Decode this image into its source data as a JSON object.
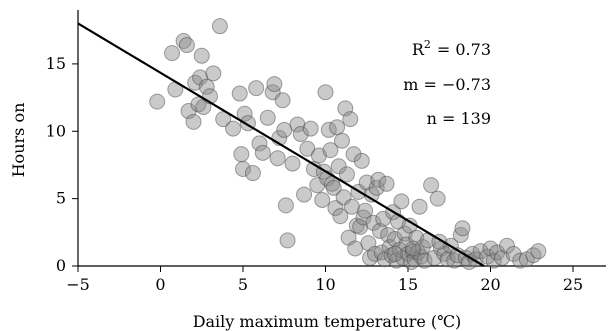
{
  "chart_data": {
    "type": "scatter",
    "xlabel": "Daily maximum temperature (℃)",
    "ylabel": "Hours on",
    "xlim": [
      -5,
      27
    ],
    "ylim": [
      0,
      19
    ],
    "xticks": [
      -5,
      0,
      5,
      10,
      15,
      20,
      25
    ],
    "yticks": [
      0,
      5,
      10,
      15
    ],
    "grid": false,
    "annotations": {
      "r2_label": "R",
      "r2_sup": "2",
      "r2_value": "= 0.73",
      "m_line": "m = −0.73",
      "n_line": "n = 139"
    },
    "fit_line": {
      "x": [
        -5,
        19.6
      ],
      "y": [
        18,
        0
      ]
    },
    "points": [
      [
        -0.2,
        12.2
      ],
      [
        0.7,
        15.8
      ],
      [
        0.9,
        13.1
      ],
      [
        1.4,
        16.7
      ],
      [
        1.6,
        16.4
      ],
      [
        1.7,
        11.5
      ],
      [
        2.0,
        10.7
      ],
      [
        2.1,
        13.6
      ],
      [
        2.3,
        12.0
      ],
      [
        2.4,
        14.0
      ],
      [
        2.5,
        15.6
      ],
      [
        2.6,
        11.8
      ],
      [
        2.8,
        13.3
      ],
      [
        3.0,
        12.6
      ],
      [
        3.2,
        14.3
      ],
      [
        3.6,
        17.8
      ],
      [
        3.8,
        10.9
      ],
      [
        4.4,
        10.2
      ],
      [
        4.8,
        12.8
      ],
      [
        4.9,
        8.3
      ],
      [
        5.0,
        7.2
      ],
      [
        5.1,
        11.3
      ],
      [
        5.3,
        10.6
      ],
      [
        5.6,
        6.9
      ],
      [
        5.8,
        13.2
      ],
      [
        6.0,
        9.1
      ],
      [
        6.2,
        8.4
      ],
      [
        6.5,
        11.0
      ],
      [
        6.8,
        12.9
      ],
      [
        6.9,
        13.5
      ],
      [
        7.1,
        8.0
      ],
      [
        7.2,
        9.5
      ],
      [
        7.4,
        12.3
      ],
      [
        7.5,
        10.1
      ],
      [
        7.6,
        4.5
      ],
      [
        7.7,
        1.9
      ],
      [
        8.0,
        7.6
      ],
      [
        8.3,
        10.5
      ],
      [
        8.5,
        9.8
      ],
      [
        8.7,
        5.3
      ],
      [
        8.9,
        8.7
      ],
      [
        9.1,
        10.2
      ],
      [
        9.3,
        7.2
      ],
      [
        9.5,
        6.0
      ],
      [
        9.6,
        8.2
      ],
      [
        9.8,
        4.9
      ],
      [
        9.9,
        7.0
      ],
      [
        10.0,
        12.9
      ],
      [
        10.1,
        6.5
      ],
      [
        10.2,
        10.1
      ],
      [
        10.3,
        8.6
      ],
      [
        10.4,
        6.1
      ],
      [
        10.5,
        5.8
      ],
      [
        10.6,
        4.3
      ],
      [
        10.7,
        10.3
      ],
      [
        10.8,
        7.4
      ],
      [
        10.9,
        3.7
      ],
      [
        11.0,
        9.3
      ],
      [
        11.1,
        5.1
      ],
      [
        11.2,
        11.7
      ],
      [
        11.3,
        6.8
      ],
      [
        11.4,
        2.1
      ],
      [
        11.5,
        10.9
      ],
      [
        11.6,
        4.4
      ],
      [
        11.7,
        8.3
      ],
      [
        11.8,
        1.3
      ],
      [
        11.9,
        3.0
      ],
      [
        12.0,
        5.5
      ],
      [
        12.1,
        2.9
      ],
      [
        12.2,
        7.8
      ],
      [
        12.3,
        3.6
      ],
      [
        12.4,
        4.1
      ],
      [
        12.5,
        6.2
      ],
      [
        12.6,
        1.7
      ],
      [
        12.7,
        0.6
      ],
      [
        12.8,
        5.3
      ],
      [
        12.9,
        3.2
      ],
      [
        13.0,
        0.9
      ],
      [
        13.1,
        5.8
      ],
      [
        13.2,
        6.4
      ],
      [
        13.3,
        2.6
      ],
      [
        13.4,
        1.0
      ],
      [
        13.5,
        3.5
      ],
      [
        13.6,
        0.5
      ],
      [
        13.7,
        6.1
      ],
      [
        13.8,
        2.3
      ],
      [
        13.9,
        1.4
      ],
      [
        14.0,
        0.8
      ],
      [
        14.1,
        4.0
      ],
      [
        14.2,
        2.0
      ],
      [
        14.3,
        0.4
      ],
      [
        14.4,
        3.3
      ],
      [
        14.5,
        1.2
      ],
      [
        14.6,
        4.8
      ],
      [
        14.7,
        0.6
      ],
      [
        14.8,
        2.4
      ],
      [
        14.9,
        1.6
      ],
      [
        15.0,
        0.9
      ],
      [
        15.1,
        3.0
      ],
      [
        15.2,
        0.3
      ],
      [
        15.3,
        1.1
      ],
      [
        15.4,
        0.5
      ],
      [
        15.5,
        2.1
      ],
      [
        15.6,
        1.0
      ],
      [
        15.7,
        4.4
      ],
      [
        15.8,
        0.7
      ],
      [
        15.9,
        1.4
      ],
      [
        16.0,
        0.4
      ],
      [
        16.2,
        1.9
      ],
      [
        16.4,
        6.0
      ],
      [
        16.6,
        0.6
      ],
      [
        16.8,
        5.0
      ],
      [
        17.0,
        1.3
      ],
      [
        17.2,
        0.9
      ],
      [
        17.4,
        0.5
      ],
      [
        17.6,
        1.5
      ],
      [
        17.8,
        0.4
      ],
      [
        18.0,
        0.8
      ],
      [
        18.2,
        2.3
      ],
      [
        18.3,
        2.8
      ],
      [
        18.5,
        0.6
      ],
      [
        18.7,
        0.3
      ],
      [
        18.9,
        0.9
      ],
      [
        19.1,
        0.5
      ],
      [
        19.4,
        1.1
      ],
      [
        19.8,
        0.7
      ],
      [
        20.0,
        1.3
      ],
      [
        20.2,
        0.4
      ],
      [
        20.4,
        1.0
      ],
      [
        20.7,
        0.6
      ],
      [
        21.0,
        1.5
      ],
      [
        21.4,
        0.9
      ],
      [
        21.8,
        0.4
      ],
      [
        22.2,
        0.5
      ],
      [
        22.6,
        0.8
      ],
      [
        22.9,
        1.1
      ],
      [
        15.3,
        1.3
      ],
      [
        14.2,
        0.9
      ],
      [
        16.9,
        1.8
      ]
    ]
  }
}
